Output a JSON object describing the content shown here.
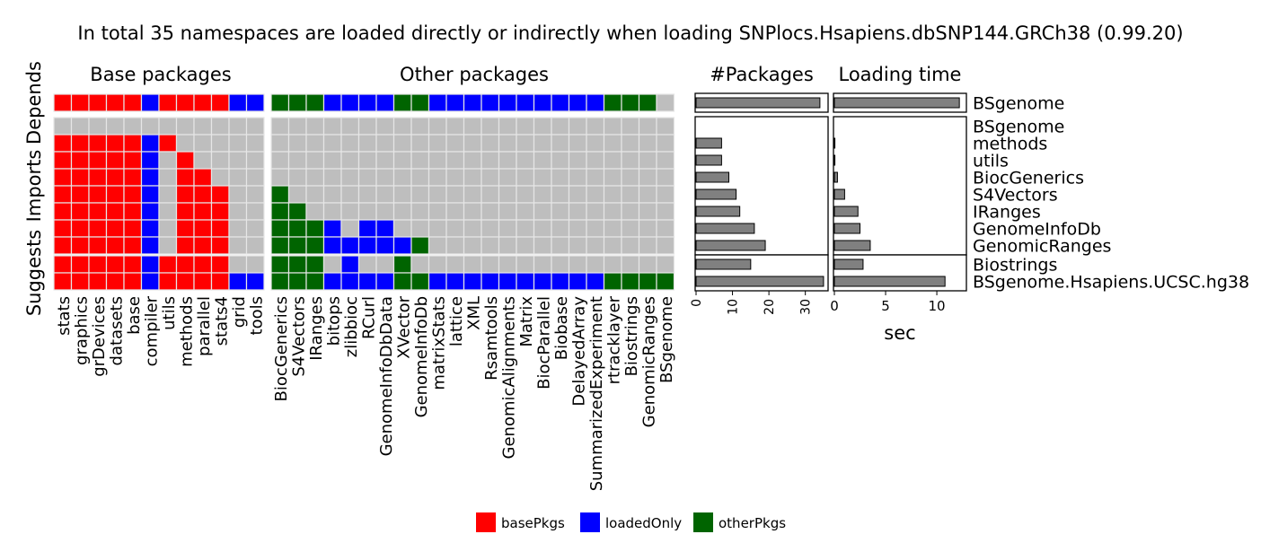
{
  "title": "In total 35 namespaces are loaded directly or indirectly when loading SNPlocs.Hsapiens.dbSNP144.GRCh38 (0.99.20)",
  "panels": {
    "base": "Base packages",
    "other": "Other packages",
    "count": "#Packages",
    "time": "Loading time"
  },
  "colors": {
    "basePkgs": "#ff0000",
    "loadedOnly": "#0000ff",
    "otherPkgs": "#006400",
    "empty": "#bebebe",
    "bar": "#808080"
  },
  "legend": [
    {
      "key": "basePkgs",
      "label": "basePkgs"
    },
    {
      "key": "loadedOnly",
      "label": "loadedOnly"
    },
    {
      "key": "otherPkgs",
      "label": "otherPkgs"
    }
  ],
  "chart_data": {
    "type": "heatmap",
    "columns_base": [
      "stats",
      "graphics",
      "grDevices",
      "datasets",
      "base",
      "compiler",
      "utils",
      "methods",
      "parallel",
      "stats4",
      "grid",
      "tools"
    ],
    "columns_other": [
      "BiocGenerics",
      "S4Vectors",
      "IRanges",
      "bitops",
      "zlibbioc",
      "RCurl",
      "GenomeInfoDbData",
      "XVector",
      "GenomeInfoDb",
      "matrixStats",
      "lattice",
      "XML",
      "Rsamtools",
      "GenomicAlignments",
      "Matrix",
      "BiocParallel",
      "Biobase",
      "DelayedArray",
      "SummarizedExperiment",
      "rtracklayer",
      "Biostrings",
      "GenomicRanges",
      "BSgenome"
    ],
    "groups": [
      {
        "name": "Depends",
        "rows": [
          {
            "package": "BSgenome",
            "base": "BBBBBLBBBBLL",
            "other": "OOOLLLLOOLLLLLLLLLLOOO.",
            "count": 34,
            "time": 12.2
          }
        ]
      },
      {
        "name": "Imports",
        "rows": [
          {
            "package": "BSgenome",
            "base": "............",
            "other": ".......................",
            "count": 0,
            "time": 0
          },
          {
            "package": "methods",
            "base": "BBBBBLB.....",
            "other": ".......................",
            "count": 7,
            "time": 0.05
          },
          {
            "package": "utils",
            "base": "BBBBBL.B....",
            "other": ".......................",
            "count": 7,
            "time": 0.05
          },
          {
            "package": "BiocGenerics",
            "base": "BBBBBL.BB...",
            "other": ".......................",
            "count": 9,
            "time": 0.3
          },
          {
            "package": "S4Vectors",
            "base": "BBBBBL.BBB..",
            "other": "O......................",
            "count": 11,
            "time": 1
          },
          {
            "package": "IRanges",
            "base": "BBBBBL.BBB..",
            "other": "OO.....................",
            "count": 12,
            "time": 2.3
          },
          {
            "package": "GenomeInfoDb",
            "base": "BBBBBL.BBB..",
            "other": "OOOL.LL................",
            "count": 16,
            "time": 2.5
          },
          {
            "package": "GenomicRanges",
            "base": "BBBBBL.BBB..",
            "other": "OOOLLLLLO..............",
            "count": 19,
            "time": 3.5
          }
        ]
      },
      {
        "name": "Suggests",
        "rows": [
          {
            "package": "Biostrings",
            "base": "BBBBBLBBBB..",
            "other": "OOO.L..O...............",
            "count": 15,
            "time": 2.8
          },
          {
            "package": "BSgenome.Hsapiens.UCSC.hg38",
            "base": "BBBBBLBBBBLL",
            "other": "OOOLLLLOOLLLLLLLLLLOOOO",
            "count": 35,
            "time": 10.8
          }
        ]
      }
    ],
    "count_axis": {
      "ticks": [
        "0",
        "10",
        "20",
        "30"
      ],
      "max": 36
    },
    "time_axis": {
      "ticks": [
        "0",
        "5",
        "10"
      ],
      "max": 12.8,
      "label": "sec"
    }
  }
}
